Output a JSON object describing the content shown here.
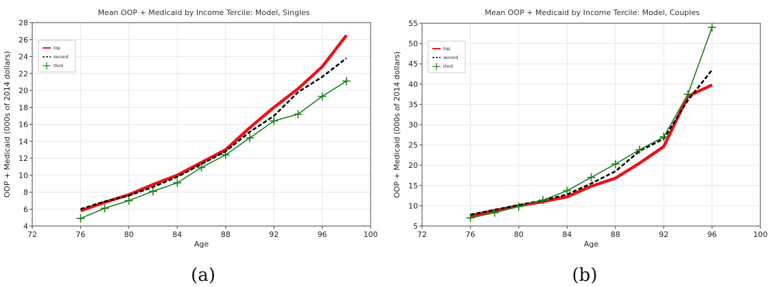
{
  "chart_data": [
    {
      "type": "line",
      "title": "Mean OOP + Medicaid by Income Tercile: Model, Singles",
      "xlabel": "Age",
      "ylabel": "OOP + Medicaid (000s of 2014 dollars)",
      "xlim": [
        72,
        100
      ],
      "ylim": [
        4,
        28
      ],
      "xticks": [
        "72",
        "76",
        "80",
        "84",
        "88",
        "92",
        "96",
        "100"
      ],
      "yticks": [
        "4",
        "6",
        "8",
        "10",
        "12",
        "14",
        "16",
        "18",
        "20",
        "22",
        "24",
        "26",
        "28"
      ],
      "grid": true,
      "legend_position": "top-left",
      "series": [
        {
          "name": "top",
          "color": "#e8141b",
          "style": "solid-thick",
          "x": [
            76,
            78,
            80,
            82,
            84,
            86,
            88,
            90,
            92,
            94,
            96,
            98
          ],
          "y": [
            5.8,
            6.8,
            7.7,
            8.9,
            10.0,
            11.5,
            13.0,
            15.6,
            18.0,
            20.2,
            22.8,
            26.5
          ]
        },
        {
          "name": "second",
          "color": "#000000",
          "style": "dashed",
          "x": [
            76,
            78,
            80,
            82,
            84,
            86,
            88,
            90,
            92,
            94,
            96,
            98
          ],
          "y": [
            6.0,
            6.9,
            7.6,
            8.6,
            9.8,
            11.3,
            12.8,
            15.1,
            17.0,
            19.8,
            21.6,
            23.8
          ]
        },
        {
          "name": "third",
          "color": "#1a7f1a",
          "style": "solid-cross",
          "x": [
            76,
            78,
            80,
            82,
            84,
            86,
            88,
            90,
            92,
            94,
            96,
            98
          ],
          "y": [
            4.9,
            6.1,
            7.0,
            8.1,
            9.1,
            10.9,
            12.4,
            14.4,
            16.4,
            17.2,
            19.3,
            21.1
          ]
        }
      ],
      "panel_label": "(a)"
    },
    {
      "type": "line",
      "title": "Mean OOP + Medicaid by Income Tercile: Model, Couples",
      "xlabel": "Age",
      "ylabel": "OOP + Medicaid (000s of 2014 dollars)",
      "xlim": [
        72,
        100
      ],
      "ylim": [
        5,
        55
      ],
      "xticks": [
        "72",
        "76",
        "80",
        "84",
        "88",
        "92",
        "96",
        "100"
      ],
      "yticks": [
        "5",
        "10",
        "15",
        "20",
        "25",
        "30",
        "35",
        "40",
        "45",
        "50",
        "55"
      ],
      "grid": true,
      "legend_position": "top-left",
      "series": [
        {
          "name": "top",
          "color": "#e8141b",
          "style": "solid-thick",
          "x": [
            76,
            78,
            80,
            82,
            84,
            86,
            88,
            90,
            92,
            94,
            96
          ],
          "y": [
            7.5,
            8.8,
            10.0,
            11.0,
            12.2,
            14.8,
            16.8,
            20.5,
            24.6,
            37.0,
            39.8
          ]
        },
        {
          "name": "second",
          "color": "#000000",
          "style": "dashed",
          "x": [
            76,
            78,
            80,
            82,
            84,
            86,
            88,
            90,
            92,
            94,
            96
          ],
          "y": [
            7.8,
            9.0,
            10.2,
            11.3,
            12.8,
            15.5,
            18.5,
            23.5,
            26.5,
            36.0,
            43.5
          ]
        },
        {
          "name": "third",
          "color": "#1a7f1a",
          "style": "solid-cross",
          "x": [
            76,
            78,
            80,
            82,
            84,
            86,
            88,
            90,
            92,
            94,
            96
          ],
          "y": [
            7.0,
            8.3,
            9.8,
            11.4,
            13.7,
            17.0,
            20.3,
            23.8,
            27.0,
            37.5,
            54.0
          ]
        }
      ],
      "panel_label": "(b)"
    }
  ]
}
